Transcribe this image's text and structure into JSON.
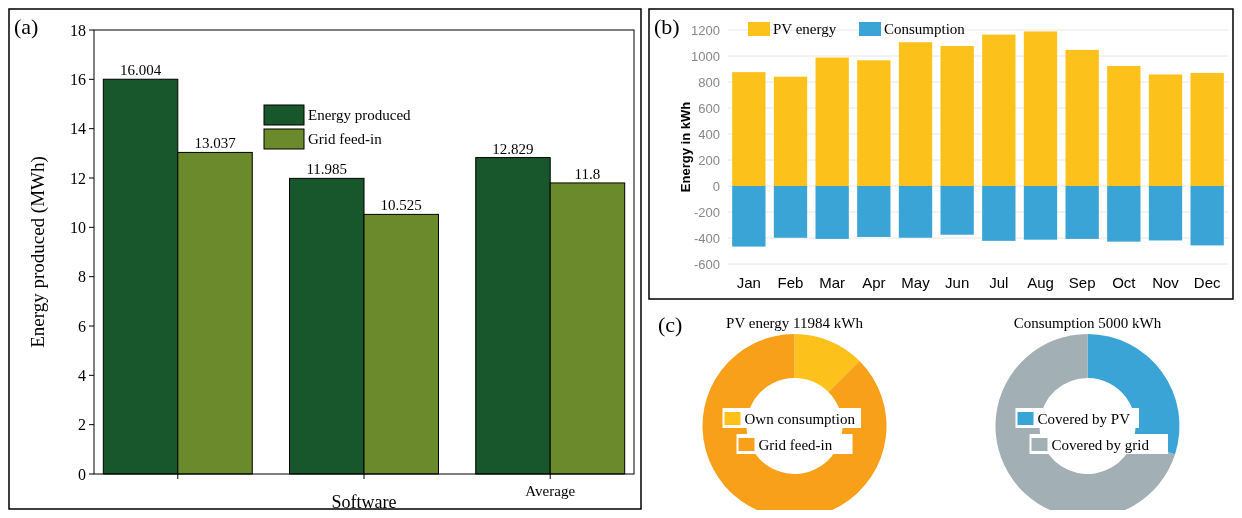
{
  "chart_data": [
    {
      "type": "bar",
      "annotations": [
        "(a)"
      ],
      "xlabel": "Software",
      "ylabel": "Energy produced (MWh)",
      "categories": [
        null,
        null,
        "Average"
      ],
      "series": [
        {
          "name": "Energy produced",
          "color": "#17572b",
          "values": [
            16.004,
            11.985,
            12.829
          ]
        },
        {
          "name": "Grid feed-in",
          "color": "#6b8a2c",
          "values": [
            13.037,
            10.525,
            11.8
          ]
        }
      ],
      "ylim": [
        0,
        18
      ],
      "yticks": [
        0,
        2,
        4,
        6,
        8,
        10,
        12,
        14,
        16,
        18
      ],
      "data_labels": true,
      "legend": "top",
      "grid": false
    },
    {
      "type": "bar",
      "annotations": [
        "(b)"
      ],
      "ylabel": "Energy in kWh",
      "categories": [
        "Jan",
        "Feb",
        "Mar",
        "Apr",
        "May",
        "Jun",
        "Jul",
        "Aug",
        "Sep",
        "Oct",
        "Nov",
        "Dec"
      ],
      "stacked": true,
      "series": [
        {
          "name": "PV energy",
          "color": "#fdc11b",
          "values": [
            876,
            841,
            988,
            967,
            1106,
            1077,
            1165,
            1189,
            1047,
            923,
            858,
            870
          ]
        },
        {
          "name": "Consumption",
          "color": "#3aa4d6",
          "values": [
            -466,
            -398,
            -407,
            -392,
            -398,
            -375,
            -422,
            -413,
            -407,
            -428,
            -419,
            -457
          ]
        }
      ],
      "ylim": [
        -600,
        1200
      ],
      "yticks": [
        -600,
        -400,
        -200,
        0,
        200,
        400,
        600,
        800,
        1000,
        1200
      ],
      "grid": "y",
      "legend": "top left"
    },
    {
      "type": "donut",
      "annotations": [
        "(c)"
      ],
      "title": "PV energy 11984 kWh",
      "categories": [
        "Own consumption",
        "Grid feed-in"
      ],
      "values": [
        12.5,
        87.5
      ],
      "colors": [
        "#fdc11b",
        "#f9a01b"
      ],
      "legend": "center"
    },
    {
      "type": "donut",
      "title": "Consumption 5000 kWh",
      "categories": [
        "Covered by PV",
        "Covered by grid"
      ],
      "values": [
        30,
        70
      ],
      "colors": [
        "#3aa4d6",
        "#a2afb5"
      ],
      "legend": "center"
    }
  ]
}
